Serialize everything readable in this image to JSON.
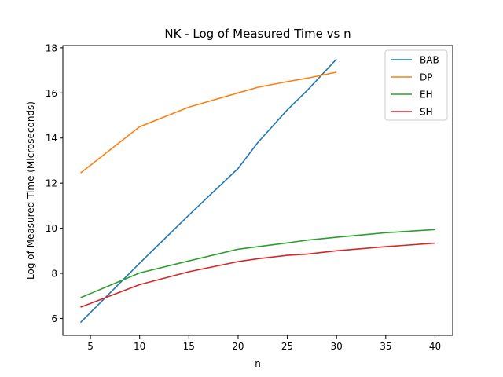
{
  "chart_data": {
    "type": "line",
    "title": "NK - Log of Measured Time vs n",
    "xlabel": "n",
    "ylabel": "Log of Measured Time (Microseconds)",
    "xlim": [
      2.2,
      41.8
    ],
    "ylim": [
      5.25,
      18.1
    ],
    "xticks": [
      5,
      10,
      15,
      20,
      25,
      30,
      35,
      40
    ],
    "yticks": [
      6,
      8,
      10,
      12,
      14,
      16,
      18
    ],
    "grid": false,
    "legend_position": "top-right",
    "series": [
      {
        "name": "BAB",
        "color": "#1f77b4",
        "x": [
          4,
          10,
          15,
          20,
          22,
          25,
          27,
          30
        ],
        "y": [
          5.82,
          8.45,
          10.58,
          12.65,
          13.8,
          15.25,
          16.1,
          17.5
        ]
      },
      {
        "name": "DP",
        "color": "#ff7f0e",
        "x": [
          4,
          10,
          15,
          20,
          22,
          25,
          27,
          30
        ],
        "y": [
          12.45,
          14.5,
          15.37,
          16.0,
          16.25,
          16.5,
          16.65,
          16.92
        ]
      },
      {
        "name": "EH",
        "color": "#2ca02c",
        "x": [
          4,
          10,
          15,
          20,
          25,
          27,
          30,
          35,
          40
        ],
        "y": [
          6.92,
          8.02,
          8.55,
          9.07,
          9.35,
          9.47,
          9.6,
          9.8,
          9.94
        ]
      },
      {
        "name": "SH",
        "color": "#d62728",
        "x": [
          4,
          10,
          15,
          20,
          22,
          25,
          27,
          30,
          35,
          40
        ],
        "y": [
          6.5,
          7.5,
          8.07,
          8.52,
          8.65,
          8.8,
          8.85,
          9.0,
          9.18,
          9.34
        ]
      }
    ]
  }
}
